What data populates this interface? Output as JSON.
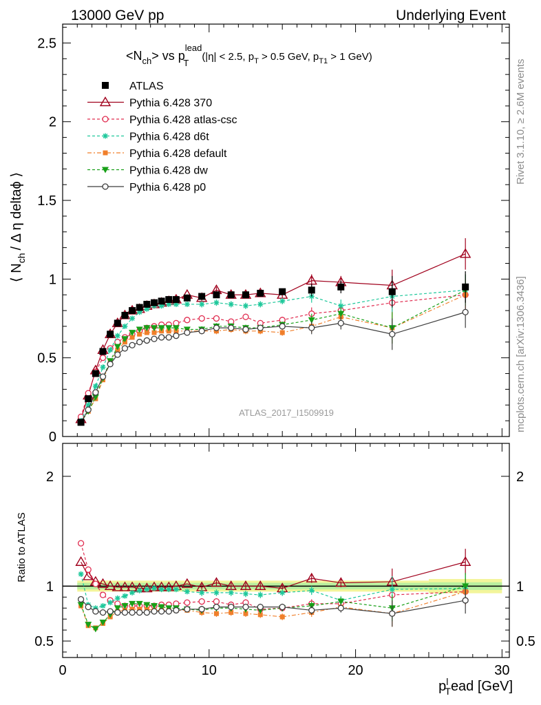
{
  "header": {
    "left": "13000 GeV pp",
    "right": "Underlying Event"
  },
  "side_text": {
    "rivet": "Rivet 3.1.10, ≥ 2.6M events",
    "mcplots": "mcplots.cern.ch [arXiv:1306.3436]"
  },
  "watermark": "ATLAS_2017_I1509919",
  "chart_data": {
    "type": "scatter",
    "title": {
      "main": "<N",
      "main_sub": "ch",
      "mid": "> vs p",
      "mid_sup": "lead",
      "mid_sub": "T",
      "cuts_a": "(|η| < 2.5, p",
      "cuts_a_sub": "T",
      "cuts_b": " > 0.5 GeV, p",
      "cuts_b_sub": "T1",
      "cuts_c": " > 1 GeV)"
    },
    "ylabel": {
      "a": "⟨ N",
      "a_sub": "ch",
      "b": "/ Δ η deltaϕ ⟩"
    },
    "xlabel": {
      "a": "p",
      "a_sup": "l",
      "a_sub": "T",
      "b": "ead [GeV]"
    },
    "ratio_ylabel": "Ratio to ATLAS",
    "xlim": [
      0,
      30.5
    ],
    "ylim": [
      0,
      2.62
    ],
    "ratio_ylim": [
      0.35,
      2.3
    ],
    "x_ticks": [
      0,
      10,
      20,
      30
    ],
    "y_ticks": [
      0,
      0.5,
      1,
      1.5,
      2,
      2.5
    ],
    "y_tick_labels": [
      "0",
      "0.5",
      "1",
      "1.5",
      "2",
      "2.5"
    ],
    "ratio_ticks": [
      0.5,
      1,
      2
    ],
    "ratio_tick_labels": [
      "0.5",
      "1",
      "2"
    ],
    "legend_position": "top-left",
    "x": [
      1.25,
      1.75,
      2.25,
      2.75,
      3.25,
      3.75,
      4.25,
      4.75,
      5.25,
      5.75,
      6.25,
      6.75,
      7.25,
      7.75,
      8.5,
      9.5,
      10.5,
      11.5,
      12.5,
      13.5,
      15,
      17,
      19,
      22.5,
      27.5
    ],
    "series": [
      {
        "name": "ATLAS",
        "color": "#000000",
        "marker": "square",
        "dash": "none",
        "ratio_line": false,
        "values": [
          0.09,
          0.24,
          0.4,
          0.54,
          0.65,
          0.72,
          0.77,
          0.8,
          0.82,
          0.84,
          0.85,
          0.86,
          0.87,
          0.87,
          0.88,
          0.89,
          0.9,
          0.9,
          0.9,
          0.91,
          0.92,
          0.93,
          0.95,
          0.92,
          0.95
        ],
        "ratio": [
          1,
          1,
          1,
          1,
          1,
          1,
          1,
          1,
          1,
          1,
          1,
          1,
          1,
          1,
          1,
          1,
          1,
          1,
          1,
          1,
          1,
          1,
          1,
          1,
          1
        ]
      },
      {
        "name": "Pythia 6.428 370",
        "color": "#a0001c",
        "marker": "triangle-open",
        "dash": "none",
        "values": [
          0.11,
          0.26,
          0.42,
          0.55,
          0.65,
          0.72,
          0.77,
          0.8,
          0.81,
          0.83,
          0.84,
          0.85,
          0.86,
          0.87,
          0.9,
          0.88,
          0.93,
          0.9,
          0.9,
          0.91,
          0.9,
          0.99,
          0.98,
          0.96,
          1.16
        ],
        "ratio": [
          1.22,
          1.09,
          1.04,
          1.02,
          1.0,
          0.99,
          0.99,
          0.99,
          0.98,
          0.98,
          0.99,
          0.99,
          0.99,
          1.0,
          1.02,
          0.99,
          1.03,
          1.0,
          1.0,
          1.0,
          0.98,
          1.07,
          1.03,
          1.04,
          1.22
        ]
      },
      {
        "name": "Pythia 6.428 atlas-csc",
        "color": "#e02a4e",
        "marker": "circle-open",
        "dash": "4,3",
        "values": [
          0.125,
          0.275,
          0.41,
          0.5,
          0.56,
          0.6,
          0.63,
          0.65,
          0.67,
          0.69,
          0.7,
          0.71,
          0.71,
          0.72,
          0.74,
          0.75,
          0.75,
          0.73,
          0.76,
          0.72,
          0.74,
          0.78,
          0.8,
          0.85,
          0.9
        ],
        "ratio": [
          1.39,
          1.15,
          1.02,
          0.92,
          0.87,
          0.84,
          0.82,
          0.82,
          0.82,
          0.82,
          0.82,
          0.83,
          0.83,
          0.84,
          0.85,
          0.86,
          0.86,
          0.83,
          0.85,
          0.79,
          0.8,
          0.84,
          0.84,
          0.92,
          0.95
        ]
      },
      {
        "name": "Pythia 6.428 d6t",
        "color": "#1ec89b",
        "marker": "asterisk",
        "dash": "4,3",
        "values": [
          0.1,
          0.2,
          0.32,
          0.44,
          0.55,
          0.64,
          0.7,
          0.75,
          0.79,
          0.81,
          0.83,
          0.83,
          0.84,
          0.84,
          0.84,
          0.84,
          0.85,
          0.84,
          0.83,
          0.84,
          0.86,
          0.89,
          0.83,
          0.89,
          0.93
        ],
        "ratio": [
          1.11,
          0.83,
          0.8,
          0.82,
          0.85,
          0.89,
          0.91,
          0.94,
          0.96,
          0.97,
          0.98,
          0.97,
          0.97,
          0.97,
          0.95,
          0.94,
          0.94,
          0.94,
          0.93,
          0.92,
          0.94,
          0.96,
          0.87,
          0.97,
          0.98
        ]
      },
      {
        "name": "Pythia 6.428 default",
        "color": "#f07f2b",
        "marker": "square-filled",
        "dash": "6,3,2,3",
        "values": [
          0.09,
          0.16,
          0.24,
          0.36,
          0.47,
          0.55,
          0.6,
          0.63,
          0.65,
          0.66,
          0.66,
          0.67,
          0.67,
          0.67,
          0.67,
          0.67,
          0.67,
          0.68,
          0.67,
          0.67,
          0.66,
          0.7,
          0.76,
          0.69,
          0.9
        ],
        "ratio": [
          0.82,
          0.64,
          0.62,
          0.66,
          0.72,
          0.77,
          0.78,
          0.79,
          0.79,
          0.79,
          0.78,
          0.78,
          0.78,
          0.78,
          0.78,
          0.76,
          0.75,
          0.76,
          0.75,
          0.74,
          0.72,
          0.76,
          0.81,
          0.75,
          0.95
        ]
      },
      {
        "name": "Pythia 6.428 dw",
        "color": "#18a018",
        "marker": "triangle-down-filled",
        "dash": "4,3",
        "values": [
          0.09,
          0.16,
          0.25,
          0.37,
          0.48,
          0.57,
          0.62,
          0.66,
          0.68,
          0.69,
          0.69,
          0.69,
          0.69,
          0.69,
          0.68,
          0.68,
          0.7,
          0.7,
          0.69,
          0.69,
          0.71,
          0.74,
          0.78,
          0.69,
          0.93
        ],
        "ratio": [
          0.83,
          0.65,
          0.61,
          0.67,
          0.74,
          0.8,
          0.82,
          0.84,
          0.84,
          0.83,
          0.82,
          0.81,
          0.8,
          0.8,
          0.79,
          0.78,
          0.8,
          0.8,
          0.79,
          0.78,
          0.8,
          0.82,
          0.86,
          0.8,
          1.0
        ]
      },
      {
        "name": "Pythia 6.428 p0",
        "color": "#3c3c3c",
        "marker": "circle-open",
        "dash": "none",
        "values": [
          0.09,
          0.17,
          0.28,
          0.38,
          0.46,
          0.52,
          0.56,
          0.58,
          0.6,
          0.61,
          0.62,
          0.63,
          0.63,
          0.64,
          0.66,
          0.67,
          0.69,
          0.69,
          0.68,
          0.69,
          0.7,
          0.69,
          0.72,
          0.65,
          0.79
        ],
        "ratio": [
          0.88,
          0.81,
          0.77,
          0.76,
          0.77,
          0.76,
          0.76,
          0.76,
          0.76,
          0.76,
          0.77,
          0.77,
          0.77,
          0.78,
          0.79,
          0.79,
          0.81,
          0.81,
          0.81,
          0.81,
          0.81,
          0.78,
          0.8,
          0.75,
          0.87
        ]
      }
    ]
  }
}
